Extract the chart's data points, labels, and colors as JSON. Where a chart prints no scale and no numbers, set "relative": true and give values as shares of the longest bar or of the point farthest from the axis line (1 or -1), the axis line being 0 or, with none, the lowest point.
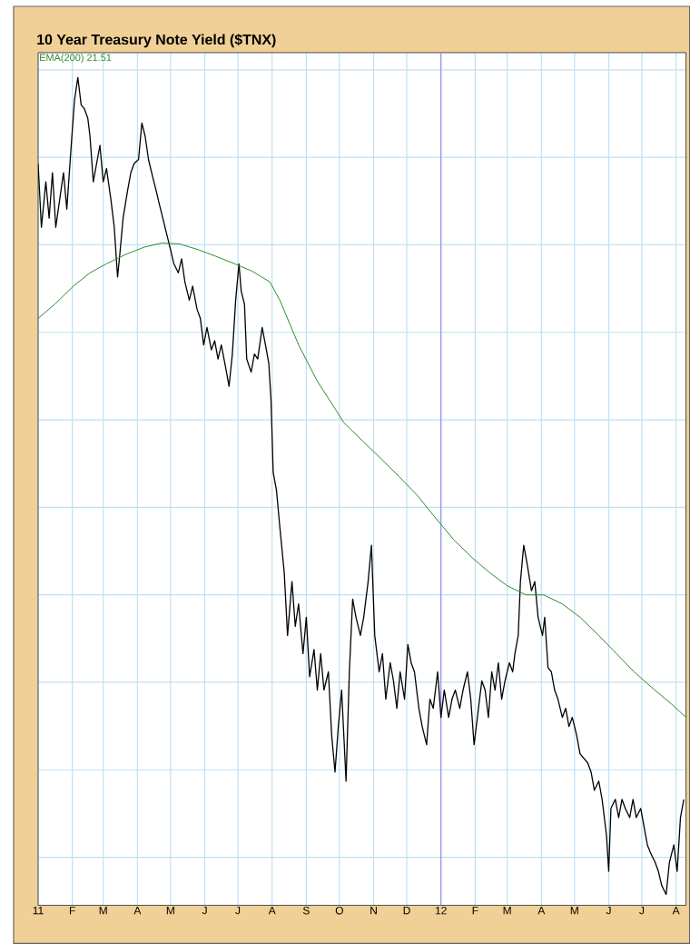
{
  "chart_data": {
    "type": "line",
    "title": "10 Year Treasury Note Yield ($TNX)",
    "relative": true,
    "grid": true,
    "legend": "top left",
    "xlim": [
      "2011-01-01",
      "2012-08-10"
    ],
    "xticks": [
      {
        "value": "2011-01-01",
        "label": "11"
      },
      {
        "value": "2011-02-01",
        "label": "F"
      },
      {
        "value": "2011-03-01",
        "label": "M"
      },
      {
        "value": "2011-04-01",
        "label": "A"
      },
      {
        "value": "2011-05-01",
        "label": "M"
      },
      {
        "value": "2011-06-01",
        "label": "J"
      },
      {
        "value": "2011-07-01",
        "label": "J"
      },
      {
        "value": "2011-08-01",
        "label": "A"
      },
      {
        "value": "2011-09-01",
        "label": "S"
      },
      {
        "value": "2011-10-01",
        "label": "O"
      },
      {
        "value": "2011-11-01",
        "label": "N"
      },
      {
        "value": "2011-12-01",
        "label": "D"
      },
      {
        "value": "2012-01-01",
        "label": "12"
      },
      {
        "value": "2012-02-01",
        "label": "F"
      },
      {
        "value": "2012-03-01",
        "label": "M"
      },
      {
        "value": "2012-04-01",
        "label": "A"
      },
      {
        "value": "2012-05-01",
        "label": "M"
      },
      {
        "value": "2012-06-01",
        "label": "J"
      },
      {
        "value": "2012-07-01",
        "label": "J"
      },
      {
        "value": "2012-08-01",
        "label": "A"
      }
    ],
    "ref_lines": [
      {
        "axis": "x",
        "value": "2012-01-01",
        "color": "#8c8cf0"
      }
    ],
    "series": [
      {
        "color": "#000000",
        "x": [
          "2011-01-01",
          "2011-01-04",
          "2011-01-08",
          "2011-01-11",
          "2011-01-14",
          "2011-01-17",
          "2011-01-21",
          "2011-01-24",
          "2011-01-27",
          "2011-01-31",
          "2011-02-03",
          "2011-02-06",
          "2011-02-09",
          "2011-02-12",
          "2011-02-15",
          "2011-02-17",
          "2011-02-20",
          "2011-02-23",
          "2011-02-26",
          "2011-03-01",
          "2011-03-04",
          "2011-03-08",
          "2011-03-11",
          "2011-03-14",
          "2011-03-16",
          "2011-03-19",
          "2011-03-23",
          "2011-03-26",
          "2011-03-29",
          "2011-04-02",
          "2011-04-05",
          "2011-04-08",
          "2011-04-11",
          "2011-04-15",
          "2011-04-18",
          "2011-04-21",
          "2011-04-24",
          "2011-04-28",
          "2011-05-01",
          "2011-05-04",
          "2011-05-08",
          "2011-05-11",
          "2011-05-14",
          "2011-05-18",
          "2011-05-21",
          "2011-05-25",
          "2011-05-28",
          "2011-05-31",
          "2011-06-03",
          "2011-06-07",
          "2011-06-10",
          "2011-06-13",
          "2011-06-16",
          "2011-06-20",
          "2011-06-23",
          "2011-06-26",
          "2011-06-29",
          "2011-07-02",
          "2011-07-04",
          "2011-07-07",
          "2011-07-09",
          "2011-07-13",
          "2011-07-16",
          "2011-07-19",
          "2011-07-23",
          "2011-07-26",
          "2011-07-29",
          "2011-07-31",
          "2011-08-02",
          "2011-08-05",
          "2011-08-08",
          "2011-08-12",
          "2011-08-15",
          "2011-08-19",
          "2011-08-22",
          "2011-08-25",
          "2011-08-29",
          "2011-09-01",
          "2011-09-04",
          "2011-09-08",
          "2011-09-11",
          "2011-09-14",
          "2011-09-17",
          "2011-09-21",
          "2011-09-24",
          "2011-09-27",
          "2011-09-30",
          "2011-10-03",
          "2011-10-07",
          "2011-10-10",
          "2011-10-13",
          "2011-10-16",
          "2011-10-20",
          "2011-10-23",
          "2011-10-27",
          "2011-10-30",
          "2011-11-02",
          "2011-11-06",
          "2011-11-09",
          "2011-11-12",
          "2011-11-16",
          "2011-11-19",
          "2011-11-22",
          "2011-11-25",
          "2011-11-29",
          "2011-12-02",
          "2011-12-05",
          "2011-12-08",
          "2011-12-12",
          "2011-12-15",
          "2011-12-19",
          "2011-12-22",
          "2011-12-25",
          "2011-12-29",
          "2012-01-01",
          "2012-01-04",
          "2012-01-08",
          "2012-01-11",
          "2012-01-14",
          "2012-01-18",
          "2012-01-21",
          "2012-01-25",
          "2012-01-28",
          "2012-01-31",
          "2012-02-03",
          "2012-02-07",
          "2012-02-10",
          "2012-02-13",
          "2012-02-16",
          "2012-02-19",
          "2012-02-22",
          "2012-02-25",
          "2012-02-28",
          "2012-03-03",
          "2012-03-06",
          "2012-03-08",
          "2012-03-11",
          "2012-03-13",
          "2012-03-16",
          "2012-03-19",
          "2012-03-23",
          "2012-03-26",
          "2012-03-29",
          "2012-04-02",
          "2012-04-04",
          "2012-04-07",
          "2012-04-10",
          "2012-04-13",
          "2012-04-16",
          "2012-04-20",
          "2012-04-23",
          "2012-04-26",
          "2012-04-29",
          "2012-05-03",
          "2012-05-06",
          "2012-05-13",
          "2012-05-16",
          "2012-05-19",
          "2012-05-23",
          "2012-05-26",
          "2012-05-30",
          "2012-06-01",
          "2012-06-03",
          "2012-06-07",
          "2012-06-10",
          "2012-06-13",
          "2012-06-16",
          "2012-06-20",
          "2012-06-23",
          "2012-06-26",
          "2012-06-30",
          "2012-07-03",
          "2012-07-06",
          "2012-07-09",
          "2012-07-13",
          "2012-07-16",
          "2012-07-19",
          "2012-07-23",
          "2012-07-26",
          "2012-07-30",
          "2012-08-02",
          "2012-08-05",
          "2012-08-08"
        ],
        "values": [
          0.896,
          0.819,
          0.874,
          0.83,
          0.885,
          0.819,
          0.857,
          0.885,
          0.841,
          0.918,
          0.973,
          1.0,
          0.967,
          0.962,
          0.951,
          0.929,
          0.874,
          0.896,
          0.918,
          0.874,
          0.89,
          0.852,
          0.819,
          0.759,
          0.786,
          0.83,
          0.863,
          0.885,
          0.896,
          0.901,
          0.945,
          0.929,
          0.901,
          0.879,
          0.863,
          0.846,
          0.83,
          0.808,
          0.792,
          0.775,
          0.764,
          0.781,
          0.753,
          0.731,
          0.748,
          0.72,
          0.709,
          0.677,
          0.698,
          0.671,
          0.682,
          0.66,
          0.677,
          0.649,
          0.627,
          0.666,
          0.731,
          0.775,
          0.742,
          0.726,
          0.66,
          0.644,
          0.666,
          0.66,
          0.698,
          0.677,
          0.655,
          0.611,
          0.523,
          0.501,
          0.457,
          0.402,
          0.326,
          0.391,
          0.337,
          0.364,
          0.304,
          0.348,
          0.276,
          0.309,
          0.26,
          0.304,
          0.26,
          0.282,
          0.205,
          0.161,
          0.216,
          0.26,
          0.15,
          0.282,
          0.37,
          0.348,
          0.326,
          0.348,
          0.391,
          0.435,
          0.326,
          0.282,
          0.304,
          0.249,
          0.293,
          0.271,
          0.238,
          0.282,
          0.249,
          0.315,
          0.293,
          0.282,
          0.238,
          0.216,
          0.194,
          0.249,
          0.238,
          0.282,
          0.227,
          0.26,
          0.227,
          0.249,
          0.26,
          0.238,
          0.26,
          0.282,
          0.249,
          0.194,
          0.227,
          0.271,
          0.26,
          0.227,
          0.282,
          0.26,
          0.293,
          0.249,
          0.271,
          0.293,
          0.282,
          0.304,
          0.326,
          0.391,
          0.435,
          0.413,
          0.38,
          0.391,
          0.348,
          0.326,
          0.348,
          0.287,
          0.282,
          0.26,
          0.249,
          0.227,
          0.238,
          0.216,
          0.227,
          0.205,
          0.183,
          0.172,
          0.161,
          0.139,
          0.15,
          0.128,
          0.084,
          0.041,
          0.117,
          0.128,
          0.106,
          0.128,
          0.117,
          0.106,
          0.128,
          0.106,
          0.117,
          0.095,
          0.073,
          0.063,
          0.052,
          0.041,
          0.024,
          0.013,
          0.052,
          0.073,
          0.041,
          0.106,
          0.128
        ]
      },
      {
        "name": "EMA(200) 21.51",
        "color": "#2e8b2e",
        "x": [
          "2011-01-01",
          "2011-01-16",
          "2011-02-02",
          "2011-02-17",
          "2011-03-04",
          "2011-03-21",
          "2011-04-07",
          "2011-04-23",
          "2011-05-09",
          "2011-05-26",
          "2011-06-11",
          "2011-06-28",
          "2011-07-14",
          "2011-07-30",
          "2011-08-08",
          "2011-08-25",
          "2011-09-11",
          "2011-09-27",
          "2011-10-05",
          "2011-10-22",
          "2011-11-08",
          "2011-11-24",
          "2011-12-10",
          "2011-12-27",
          "2012-01-13",
          "2012-01-30",
          "2012-02-14",
          "2012-03-01",
          "2012-03-18",
          "2012-04-03",
          "2012-04-20",
          "2012-05-06",
          "2012-05-23",
          "2012-06-08",
          "2012-06-24",
          "2012-07-11",
          "2012-07-28",
          "2012-08-10"
        ],
        "values": [
          0.709,
          0.726,
          0.748,
          0.764,
          0.775,
          0.786,
          0.795,
          0.8,
          0.799,
          0.792,
          0.784,
          0.775,
          0.766,
          0.753,
          0.731,
          0.677,
          0.633,
          0.6,
          0.583,
          0.561,
          0.539,
          0.518,
          0.496,
          0.468,
          0.441,
          0.419,
          0.402,
          0.386,
          0.375,
          0.375,
          0.364,
          0.348,
          0.326,
          0.304,
          0.282,
          0.262,
          0.243,
          0.227
        ]
      }
    ]
  }
}
